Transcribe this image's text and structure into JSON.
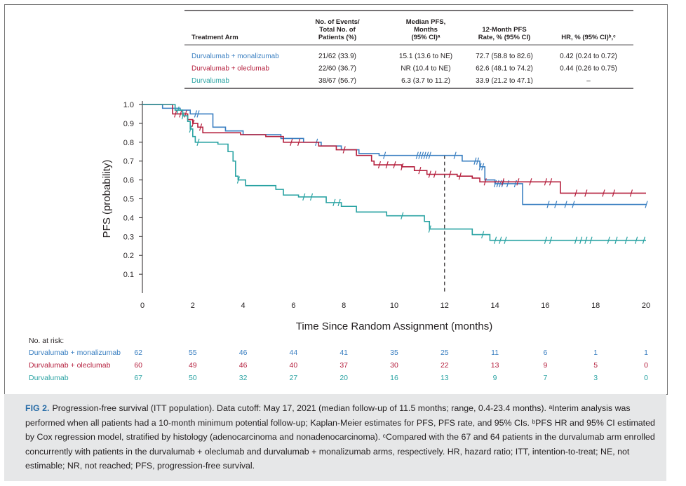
{
  "table": {
    "headers": [
      "Treatment Arm",
      "No. of Events/\nTotal No. of\nPatients (%)",
      "Median PFS,\nMonths\n(95% CI)ᵃ",
      "12-Month PFS\nRate, % (95% CI)",
      "HR, % (95% CI)ᵇ,ᶜ"
    ],
    "rows": [
      {
        "arm": "Durvalumab + monalizumab",
        "events": "21/62 (33.9)",
        "median": "15.1 (13.6 to NE)",
        "rate12": "72.7 (58.8 to 82.6)",
        "hr": "0.42 (0.24 to 0.72)",
        "color": "#3a7fc1"
      },
      {
        "arm": "Durvalumab + oleclumab",
        "events": "22/60 (36.7)",
        "median": "NR (10.4 to NE)",
        "rate12": "62.6 (48.1 to 74.2)",
        "hr": "0.44 (0.26 to 0.75)",
        "color": "#b5203e"
      },
      {
        "arm": "Durvalumab",
        "events": "38/67 (56.7)",
        "median": "6.3 (3.7 to 11.2)",
        "rate12": "33.9 (21.2 to 47.1)",
        "hr": "–",
        "color": "#2aa3a3"
      }
    ]
  },
  "chart_data": {
    "type": "line",
    "xlabel": "Time Since Random Assignment (months)",
    "ylabel": "PFS (probability)",
    "xlim": [
      0,
      20
    ],
    "ylim": [
      0,
      1.0
    ],
    "xticks": [
      "0",
      "2",
      "4",
      "6",
      "8",
      "10",
      "12",
      "14",
      "16",
      "18",
      "20"
    ],
    "yticks": [
      "0.1",
      "0.2",
      "0.3",
      "0.4",
      "0.5",
      "0.6",
      "0.7",
      "0.8",
      "0.9",
      "1.0"
    ],
    "reference_line_x": 12,
    "series": [
      {
        "name": "Durvalumab + monalizumab",
        "color": "#3a7fc1",
        "steps": [
          [
            0,
            1.0
          ],
          [
            0.8,
            0.98
          ],
          [
            1.5,
            0.97
          ],
          [
            1.9,
            0.95
          ],
          [
            2.2,
            0.95
          ],
          [
            2.8,
            0.88
          ],
          [
            3.3,
            0.86
          ],
          [
            4.0,
            0.84
          ],
          [
            5.5,
            0.82
          ],
          [
            6.4,
            0.8
          ],
          [
            7.1,
            0.78
          ],
          [
            7.9,
            0.76
          ],
          [
            8.6,
            0.74
          ],
          [
            9.4,
            0.73
          ],
          [
            10.3,
            0.73
          ],
          [
            12.7,
            0.7
          ],
          [
            13.4,
            0.67
          ],
          [
            13.6,
            0.6
          ],
          [
            14.0,
            0.58
          ],
          [
            14.9,
            0.58
          ],
          [
            15.1,
            0.47
          ],
          [
            20.0,
            0.47
          ]
        ],
        "censors": [
          2.1,
          2.2,
          6.9,
          9.6,
          10.9,
          11.0,
          11.1,
          11.2,
          11.3,
          11.4,
          12.4,
          13.2,
          13.3,
          13.4,
          13.5,
          14.0,
          14.1,
          14.2,
          14.3,
          14.5,
          14.8,
          16.1,
          16.4,
          16.8,
          17.1,
          20.0
        ]
      },
      {
        "name": "Durvalumab + oleclumab",
        "color": "#b5203e",
        "steps": [
          [
            0,
            1.0
          ],
          [
            1.2,
            0.95
          ],
          [
            1.8,
            0.92
          ],
          [
            2.0,
            0.9
          ],
          [
            2.2,
            0.88
          ],
          [
            2.4,
            0.85
          ],
          [
            3.9,
            0.84
          ],
          [
            4.9,
            0.83
          ],
          [
            5.6,
            0.8
          ],
          [
            7.0,
            0.78
          ],
          [
            7.7,
            0.76
          ],
          [
            8.5,
            0.73
          ],
          [
            9.1,
            0.7
          ],
          [
            9.2,
            0.68
          ],
          [
            10.3,
            0.67
          ],
          [
            10.8,
            0.65
          ],
          [
            11.3,
            0.63
          ],
          [
            12.5,
            0.62
          ],
          [
            13.1,
            0.61
          ],
          [
            13.4,
            0.59
          ],
          [
            16.6,
            0.53
          ],
          [
            20.0,
            0.53
          ]
        ],
        "censors": [
          1.3,
          1.5,
          1.7,
          2.0,
          2.3,
          5.9,
          6.2,
          8.0,
          9.4,
          9.7,
          10.0,
          10.3,
          11.0,
          11.4,
          11.6,
          12.2,
          12.6,
          13.6,
          14.3,
          14.9,
          15.4,
          16.0,
          16.2,
          17.2,
          17.6,
          18.3,
          18.7,
          19.4
        ]
      },
      {
        "name": "Durvalumab",
        "color": "#2aa3a3",
        "steps": [
          [
            0,
            1.0
          ],
          [
            1.3,
            0.97
          ],
          [
            1.6,
            0.94
          ],
          [
            1.8,
            0.91
          ],
          [
            1.9,
            0.87
          ],
          [
            2.0,
            0.83
          ],
          [
            2.1,
            0.8
          ],
          [
            2.3,
            0.8
          ],
          [
            3.0,
            0.79
          ],
          [
            3.4,
            0.75
          ],
          [
            3.6,
            0.7
          ],
          [
            3.7,
            0.62
          ],
          [
            3.8,
            0.6
          ],
          [
            4.1,
            0.57
          ],
          [
            5.3,
            0.55
          ],
          [
            5.6,
            0.52
          ],
          [
            6.2,
            0.51
          ],
          [
            7.3,
            0.48
          ],
          [
            7.9,
            0.46
          ],
          [
            8.5,
            0.43
          ],
          [
            9.7,
            0.41
          ],
          [
            11.2,
            0.38
          ],
          [
            11.4,
            0.34
          ],
          [
            13.1,
            0.31
          ],
          [
            13.8,
            0.28
          ],
          [
            20.0,
            0.28
          ]
        ],
        "censors": [
          1.4,
          1.6,
          1.9,
          2.2,
          3.8,
          6.4,
          6.7,
          7.6,
          7.8,
          10.3,
          11.4,
          13.5,
          14.0,
          14.2,
          14.4,
          16.0,
          16.2,
          17.2,
          17.4,
          17.6,
          17.8,
          18.5,
          18.8,
          19.2,
          19.6,
          19.9
        ]
      }
    ]
  },
  "at_risk": {
    "title": "No. at risk:",
    "rows": [
      {
        "name": "Durvalumab + monalizumab",
        "start": "62",
        "values": [
          "55",
          "46",
          "44",
          "41",
          "35",
          "25",
          "11",
          "6",
          "1",
          "1"
        ],
        "color": "#3a7fc1"
      },
      {
        "name": "Durvalumab + oleclumab",
        "start": "60",
        "values": [
          "49",
          "46",
          "40",
          "37",
          "30",
          "22",
          "13",
          "9",
          "5",
          "0"
        ],
        "color": "#b5203e"
      },
      {
        "name": "Durvalumab",
        "start": "67",
        "values": [
          "50",
          "32",
          "27",
          "20",
          "16",
          "13",
          "9",
          "7",
          "3",
          "0"
        ],
        "color": "#2aa3a3"
      }
    ]
  },
  "caption": {
    "label": "FIG 2.",
    "text": "Progression-free survival (ITT population). Data cutoff: May 17, 2021 (median follow-up of 11.5 months; range, 0.4-23.4 months). ᵃInterim analysis was performed when all patients had a 10-month minimum potential follow-up; Kaplan-Meier estimates for PFS, PFS rate, and 95% CIs. ᵇPFS HR and 95% CI estimated by Cox regression model, stratified by histology (adenocarcinoma and nonadenocarcinoma). ᶜCompared with the 67 and 64 patients in the durvalumab arm enrolled concurrently with patients in the durvalumab + oleclumab and durvalumab + monalizumab arms, respectively. HR, hazard ratio; ITT, intention-to-treat; NE, not estimable; NR, not reached; PFS, progression-free survival."
  }
}
